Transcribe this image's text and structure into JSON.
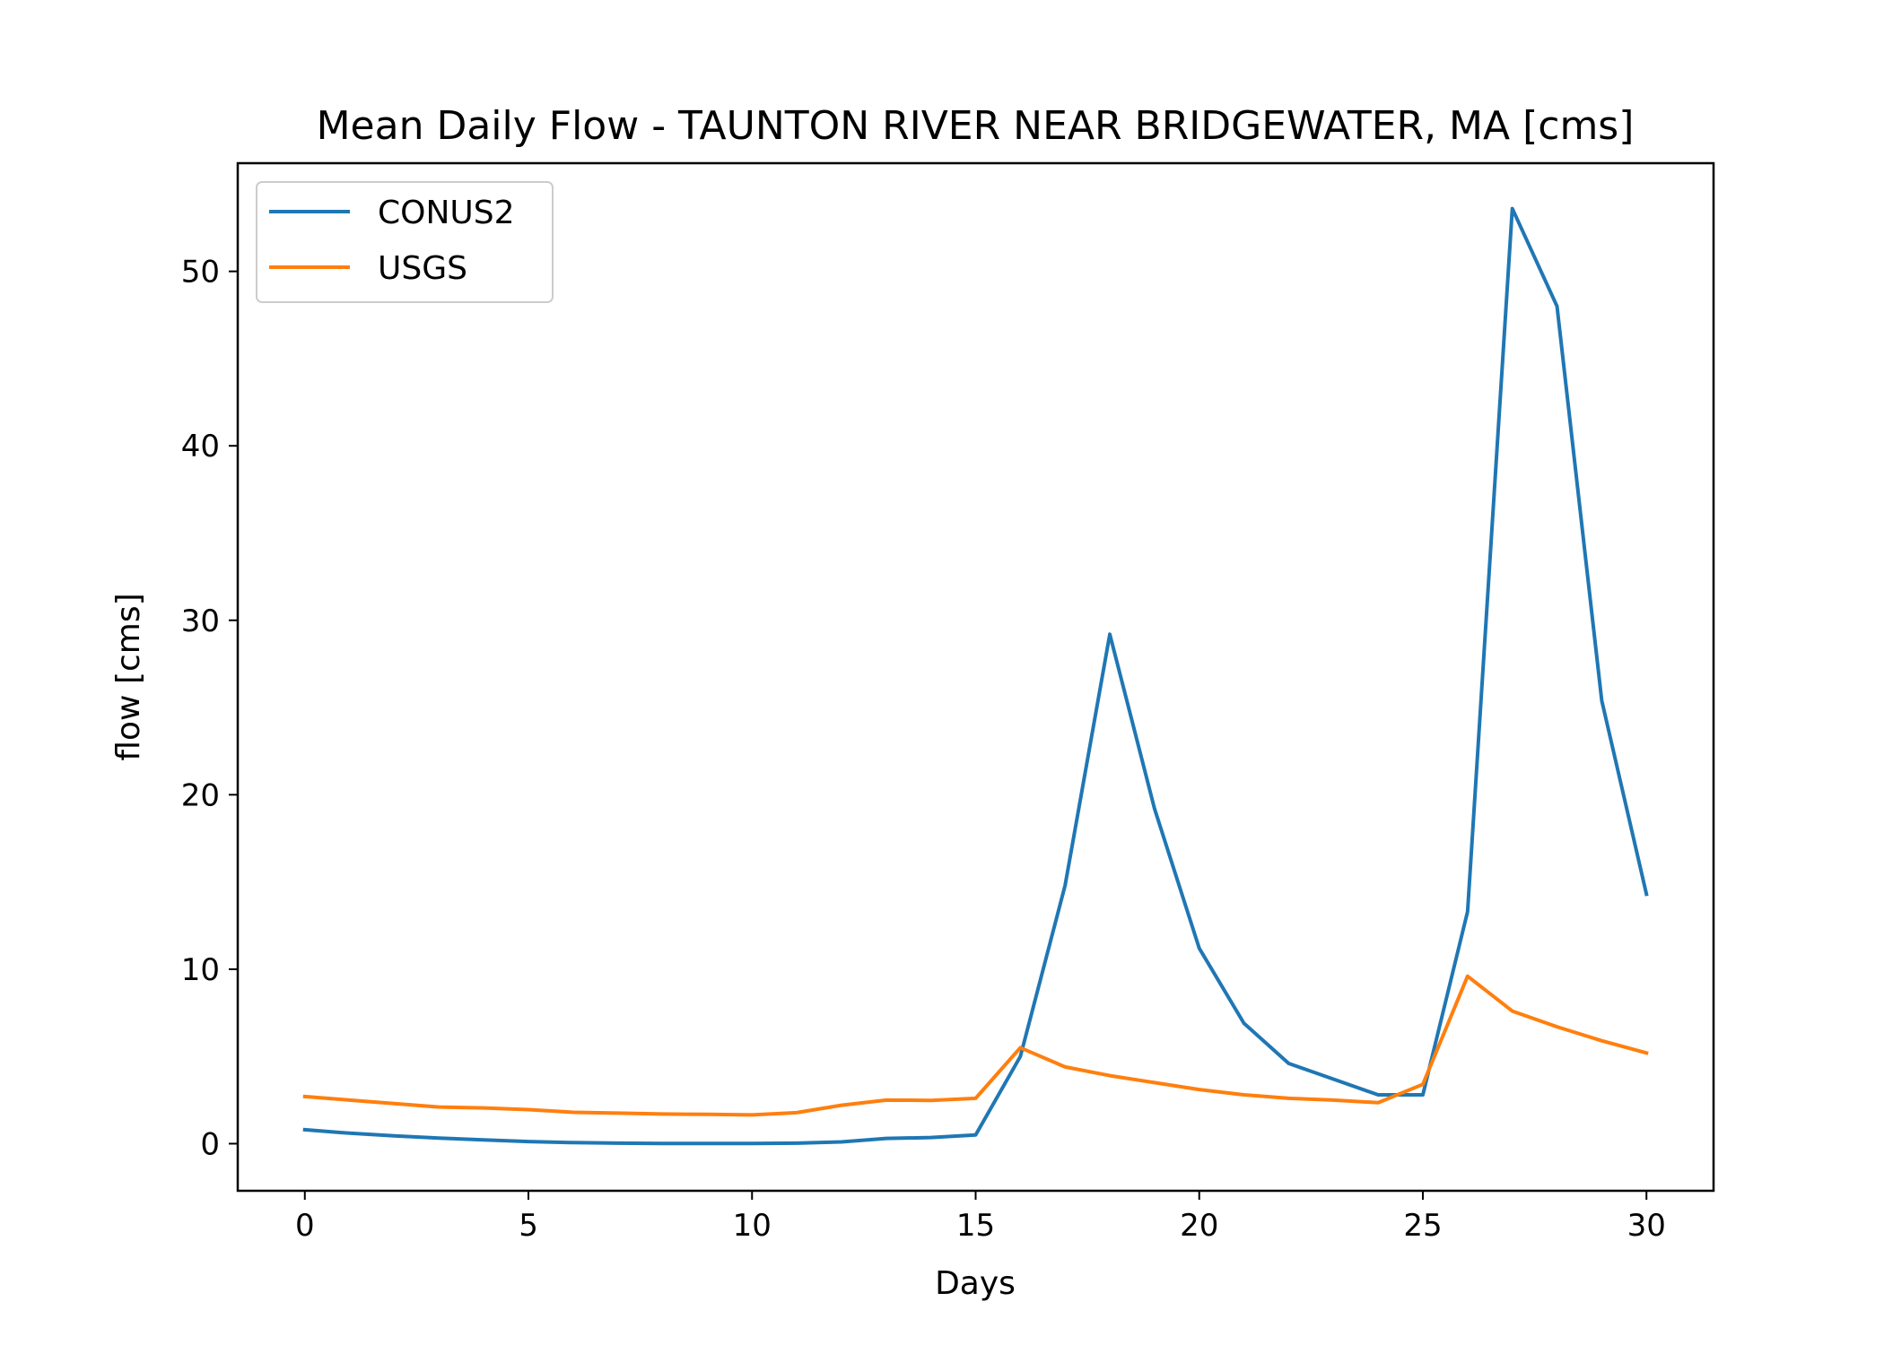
{
  "chart_data": {
    "type": "line",
    "title": "Mean Daily Flow - TAUNTON RIVER NEAR BRIDGEWATER, MA [cms]",
    "xlabel": "Days",
    "ylabel": "flow [cms]",
    "xlim": [
      -1.5,
      31.5
    ],
    "ylim": [
      -2.7,
      56.2
    ],
    "xticks": [
      0,
      5,
      10,
      15,
      20,
      25,
      30
    ],
    "yticks": [
      0,
      10,
      20,
      30,
      40,
      50
    ],
    "grid": false,
    "legend": {
      "position": "top-left",
      "entries": [
        "CONUS2",
        "USGS"
      ]
    },
    "x": [
      0,
      1,
      2,
      3,
      4,
      5,
      6,
      7,
      8,
      9,
      10,
      11,
      12,
      13,
      14,
      15,
      16,
      17,
      18,
      19,
      20,
      21,
      22,
      23,
      24,
      25,
      26,
      27,
      28,
      29,
      30
    ],
    "series": [
      {
        "name": "CONUS2",
        "color": "#1f77b4",
        "values": [
          0.8,
          0.6,
          0.45,
          0.32,
          0.22,
          0.12,
          0.06,
          0.03,
          0.01,
          0.01,
          0.01,
          0.03,
          0.1,
          0.3,
          0.35,
          0.5,
          5.0,
          14.8,
          29.2,
          19.2,
          11.2,
          6.9,
          4.6,
          3.7,
          2.8,
          2.8,
          13.3,
          53.6,
          48.0,
          25.4,
          14.3
        ]
      },
      {
        "name": "USGS",
        "color": "#ff7f0e",
        "values": [
          2.7,
          2.5,
          2.3,
          2.1,
          2.05,
          1.95,
          1.8,
          1.75,
          1.7,
          1.68,
          1.65,
          1.78,
          2.2,
          2.5,
          2.48,
          2.6,
          5.5,
          4.4,
          3.9,
          3.5,
          3.1,
          2.8,
          2.6,
          2.5,
          2.35,
          3.4,
          9.6,
          7.6,
          6.7,
          5.9,
          5.2
        ]
      }
    ]
  }
}
